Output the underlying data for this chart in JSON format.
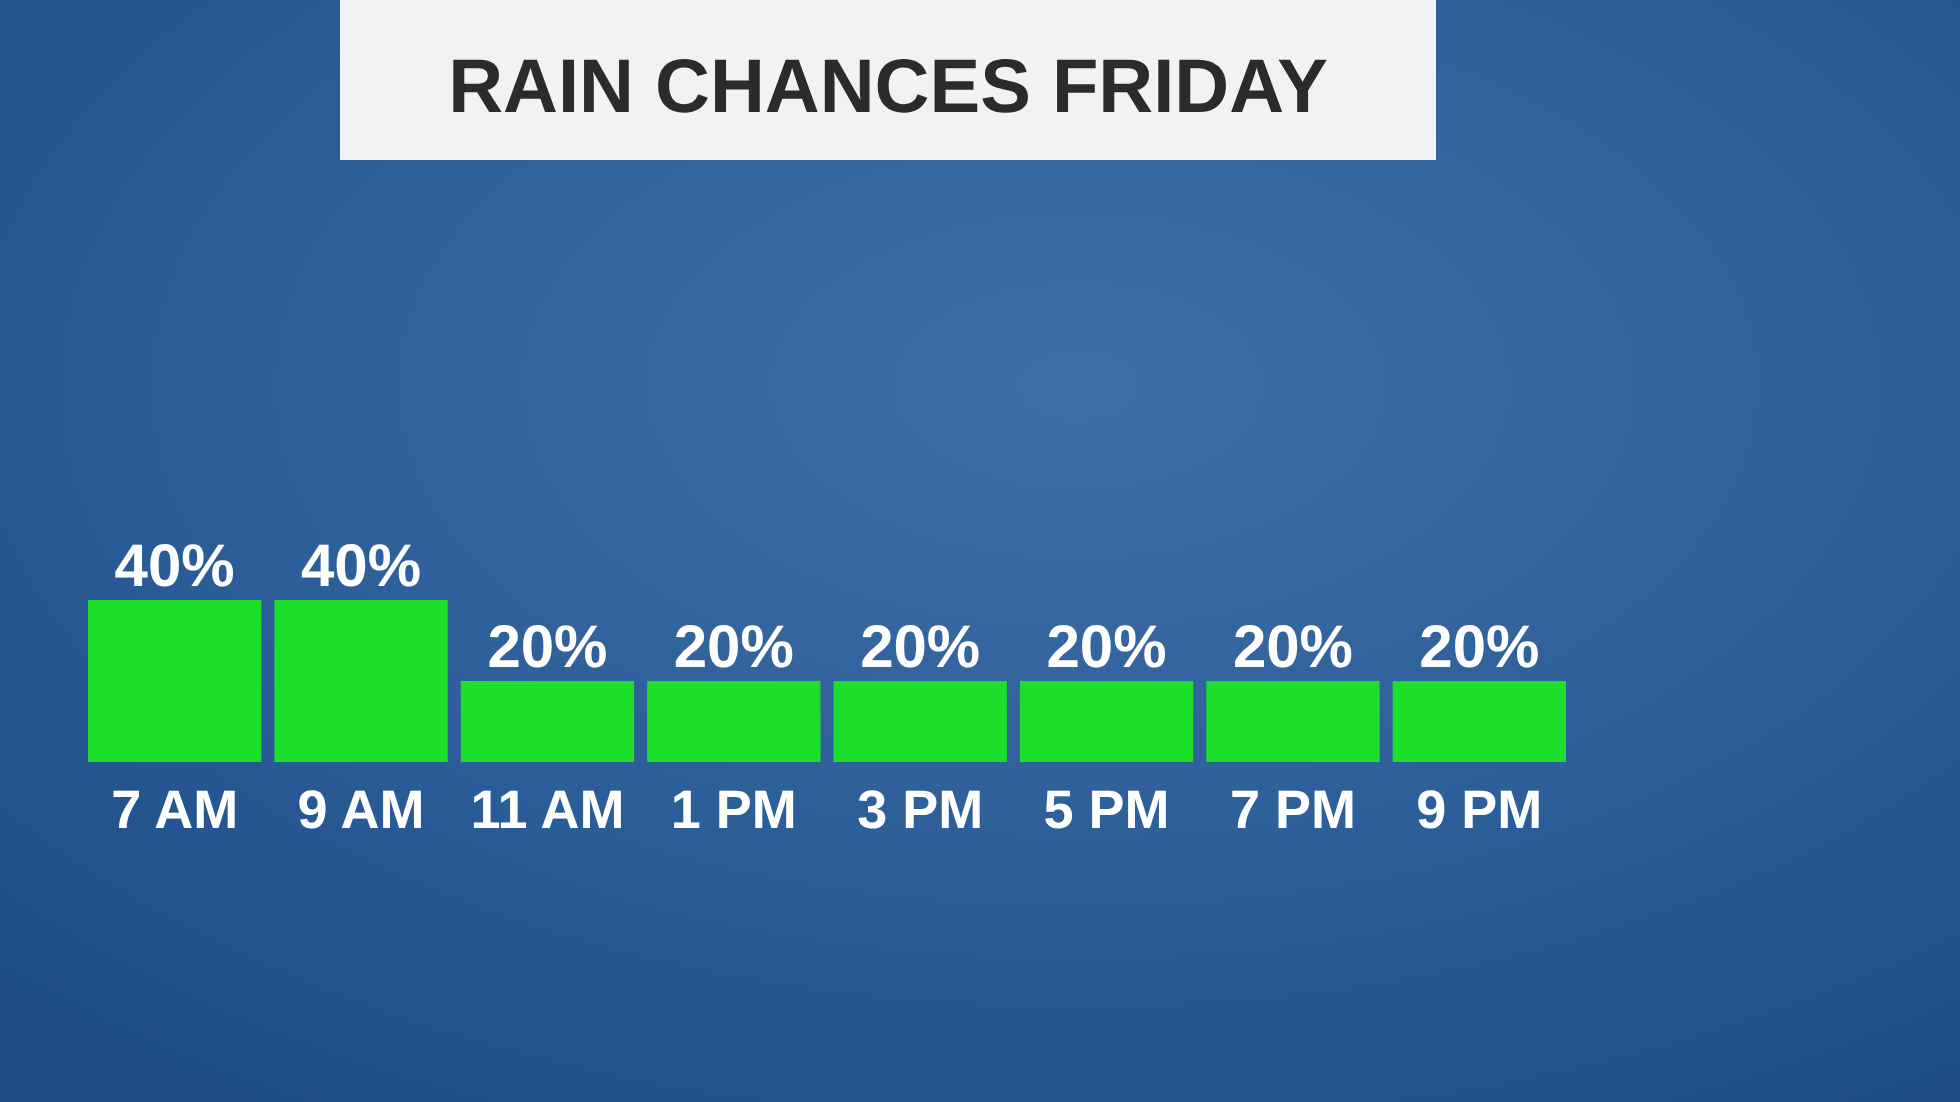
{
  "chart_data": {
    "type": "bar",
    "title": "RAIN CHANCES FRIDAY",
    "categories": [
      "7 AM",
      "9 AM",
      "11 AM",
      "1 PM",
      "3 PM",
      "5 PM",
      "7 PM",
      "9 PM"
    ],
    "values": [
      40,
      40,
      20,
      20,
      20,
      20,
      20,
      20
    ],
    "color": "#1ede2c",
    "value_labels": [
      "40%",
      "40%",
      "20%",
      "20%",
      "20%",
      "20%",
      "20%",
      "20%"
    ]
  }
}
